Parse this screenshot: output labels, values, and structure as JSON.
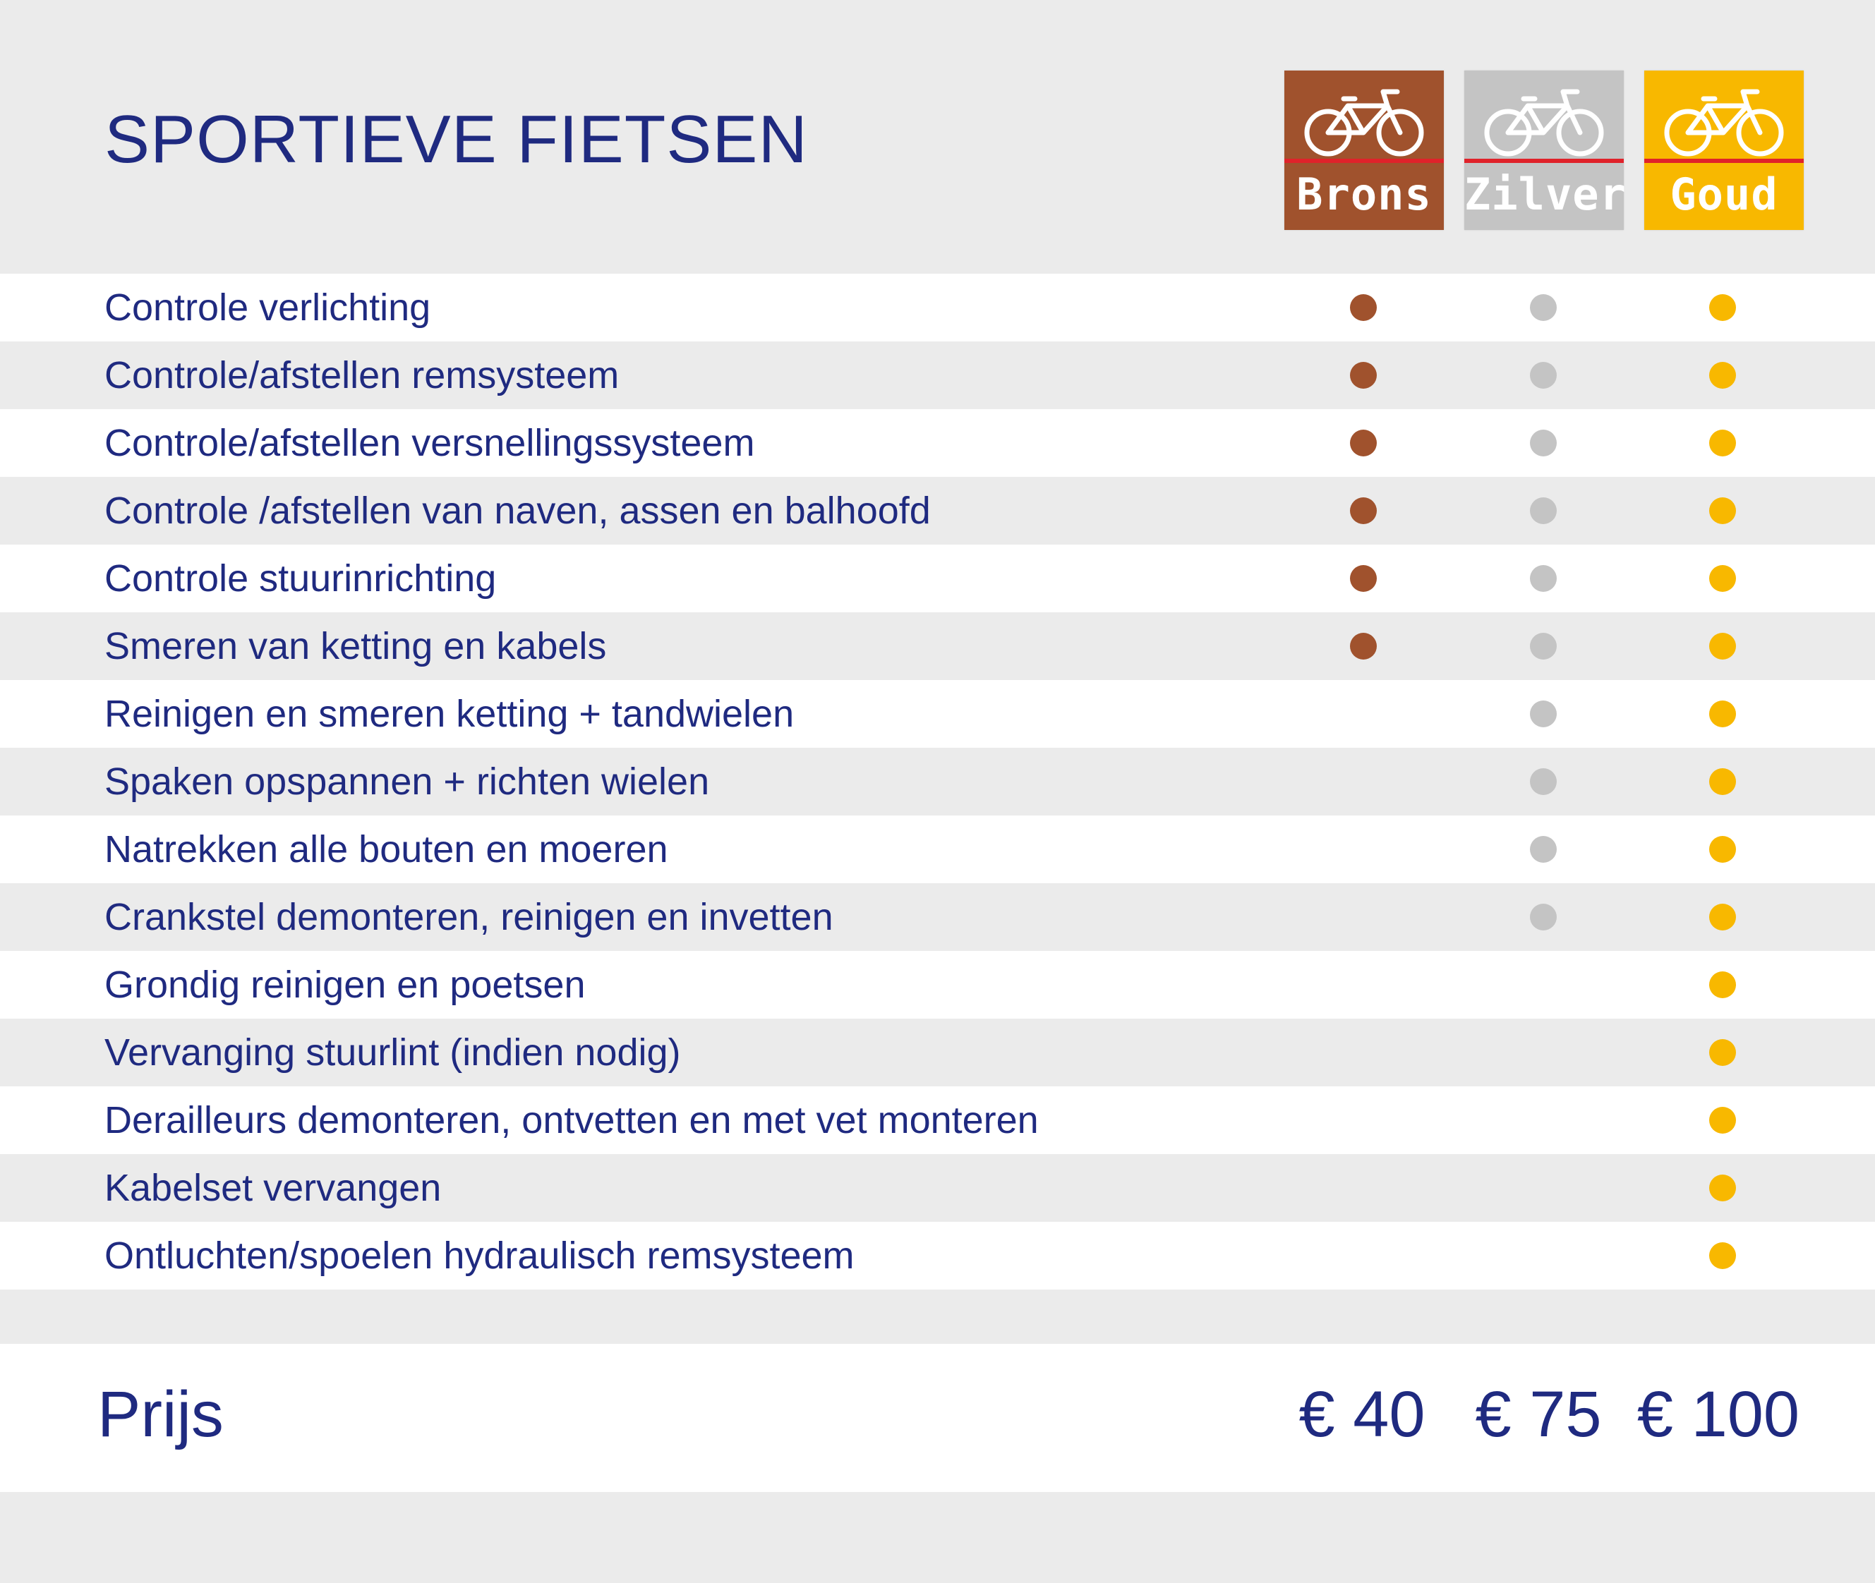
{
  "title": "SPORTIEVE FIETSEN",
  "colors": {
    "brons": "#a0522d",
    "zilver": "#c4c4c4",
    "goud": "#f8b800",
    "text": "#1f2a80",
    "stripe": "#e0222a"
  },
  "packages": [
    {
      "label": "Brons",
      "icon": "bicycle-icon",
      "price": "€ 40"
    },
    {
      "label": "Zilver",
      "icon": "bicycle-icon",
      "price": "€ 75"
    },
    {
      "label": "Goud",
      "icon": "bicycle-icon",
      "price": "€ 100"
    }
  ],
  "features": [
    {
      "label": "Controle verlichting",
      "brons": true,
      "zilver": true,
      "goud": true
    },
    {
      "label": "Controle/afstellen remsysteem",
      "brons": true,
      "zilver": true,
      "goud": true
    },
    {
      "label": "Controle/afstellen versnellingssysteem",
      "brons": true,
      "zilver": true,
      "goud": true
    },
    {
      "label": "Controle /afstellen van naven, assen en balhoofd",
      "brons": true,
      "zilver": true,
      "goud": true
    },
    {
      "label": "Controle stuurinrichting",
      "brons": true,
      "zilver": true,
      "goud": true
    },
    {
      "label": "Smeren van ketting en kabels",
      "brons": true,
      "zilver": true,
      "goud": true
    },
    {
      "label": "Reinigen en smeren ketting + tandwielen",
      "brons": false,
      "zilver": true,
      "goud": true
    },
    {
      "label": "Spaken opspannen + richten wielen",
      "brons": false,
      "zilver": true,
      "goud": true
    },
    {
      "label": "Natrekken alle bouten en moeren",
      "brons": false,
      "zilver": true,
      "goud": true
    },
    {
      "label": "Crankstel demonteren, reinigen en invetten",
      "brons": false,
      "zilver": true,
      "goud": true
    },
    {
      "label": "Grondig reinigen en poetsen",
      "brons": false,
      "zilver": false,
      "goud": true
    },
    {
      "label": "Vervanging stuurlint (indien nodig)",
      "brons": false,
      "zilver": false,
      "goud": true
    },
    {
      "label": "Derailleurs demonteren, ontvetten en met vet monteren",
      "brons": false,
      "zilver": false,
      "goud": true
    },
    {
      "label": "Kabelset vervangen",
      "brons": false,
      "zilver": false,
      "goud": true
    },
    {
      "label": "Ontluchten/spoelen hydraulisch remsysteem",
      "brons": false,
      "zilver": false,
      "goud": true
    }
  ],
  "price_label": "Prijs"
}
